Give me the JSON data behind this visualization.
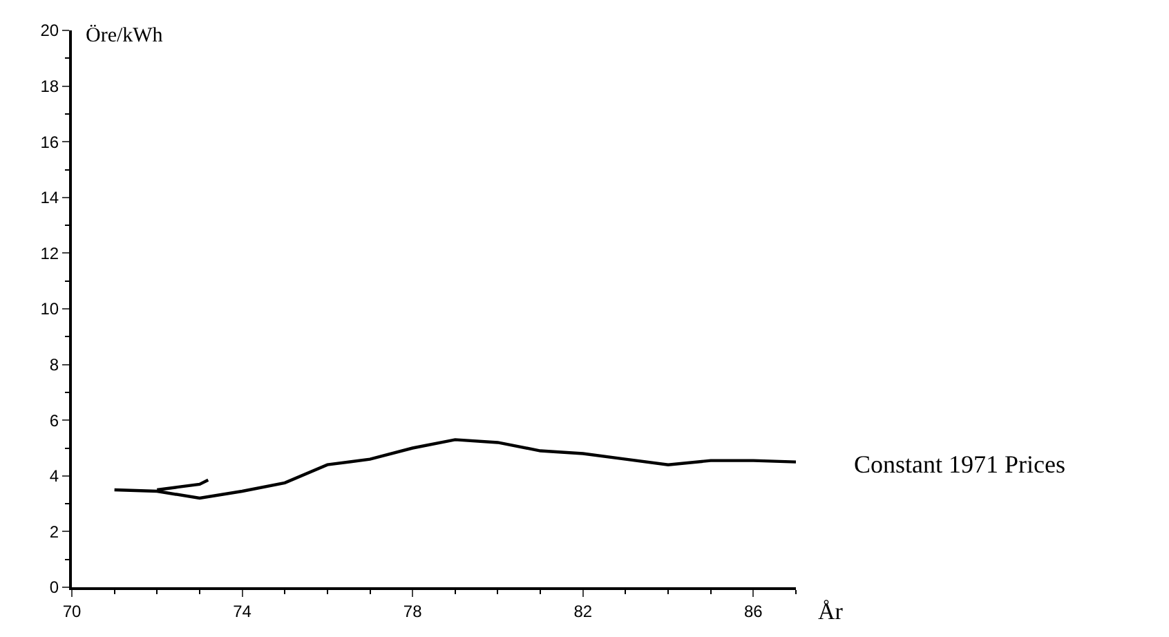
{
  "chart_data": {
    "type": "line",
    "xlabel": "År",
    "ylabel": "Öre/kWh",
    "xlim": [
      70,
      87
    ],
    "xticks": [
      70,
      74,
      78,
      82,
      86
    ],
    "ylim": [
      0,
      20
    ],
    "yticks": [
      0,
      2,
      4,
      6,
      8,
      10,
      12,
      14,
      16,
      18,
      20
    ],
    "grid": false,
    "legend": false,
    "marker": "none",
    "line_style": "solid",
    "series": [
      {
        "name": "Constant 1971 Prices",
        "color": "#000000",
        "x": [
          71,
          72,
          73,
          74,
          75,
          76,
          77,
          78,
          79,
          80,
          81,
          82,
          83,
          84,
          85,
          86,
          87
        ],
        "values": [
          3.5,
          3.45,
          3.2,
          3.45,
          3.75,
          4.4,
          4.6,
          5.0,
          5.3,
          5.2,
          4.9,
          4.8,
          4.6,
          4.4,
          4.55,
          4.55,
          4.5
        ]
      },
      {
        "color": "#000000",
        "x": [
          72.0,
          72.5,
          73.0,
          73.2
        ],
        "values": [
          3.5,
          3.6,
          3.7,
          3.85
        ]
      }
    ]
  }
}
